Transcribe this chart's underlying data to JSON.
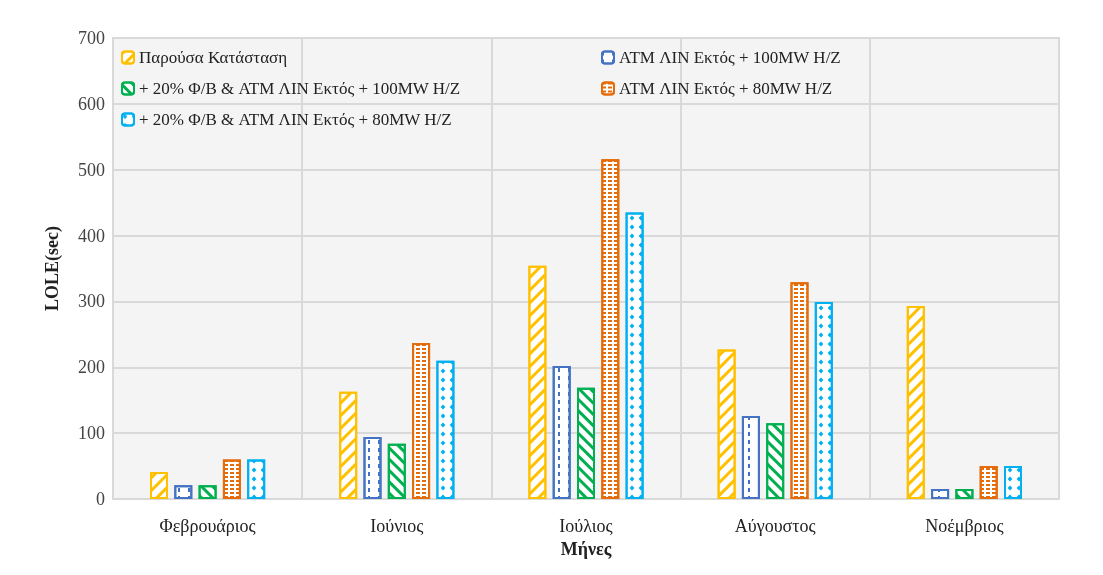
{
  "chart_data": {
    "type": "bar",
    "xlabel": "Μήνες",
    "ylabel": "LOLE(sec)",
    "categories": [
      "Φεβρουάριος",
      "Ιούνιος",
      "Ιούλιος",
      "Αύγουστος",
      "Νοέμβριος"
    ],
    "series": [
      {
        "name": "Παρούσα Κατάσταση",
        "color": "#ffc000",
        "values": [
          41,
          163,
          354,
          227,
          293
        ]
      },
      {
        "name": "ATM ΛΙΝ Εκτός + 100MW H/Z",
        "color": "#4472c4",
        "values": [
          21,
          94,
          202,
          126,
          15
        ]
      },
      {
        "name": "+ 20% Φ/Β & ATM ΛΙΝ Εκτός + 100MW H/Z",
        "color": "#00b050",
        "values": [
          21,
          84,
          169,
          115,
          15
        ]
      },
      {
        "name": "ATM ΛΙΝ Εκτός + 80MW H/Z",
        "color": "#e46c0a",
        "values": [
          60,
          237,
          516,
          329,
          50
        ]
      },
      {
        "name": "+ 20% Φ/Β & ATM ΛΙΝ Εκτός + 80MW H/Z",
        "color": "#00b0f0",
        "values": [
          60,
          210,
          435,
          299,
          50
        ]
      }
    ],
    "ylim": [
      0,
      700
    ],
    "yticks": [
      0,
      100,
      200,
      300,
      400,
      500,
      600,
      700
    ],
    "grid": true,
    "legend": "top"
  }
}
